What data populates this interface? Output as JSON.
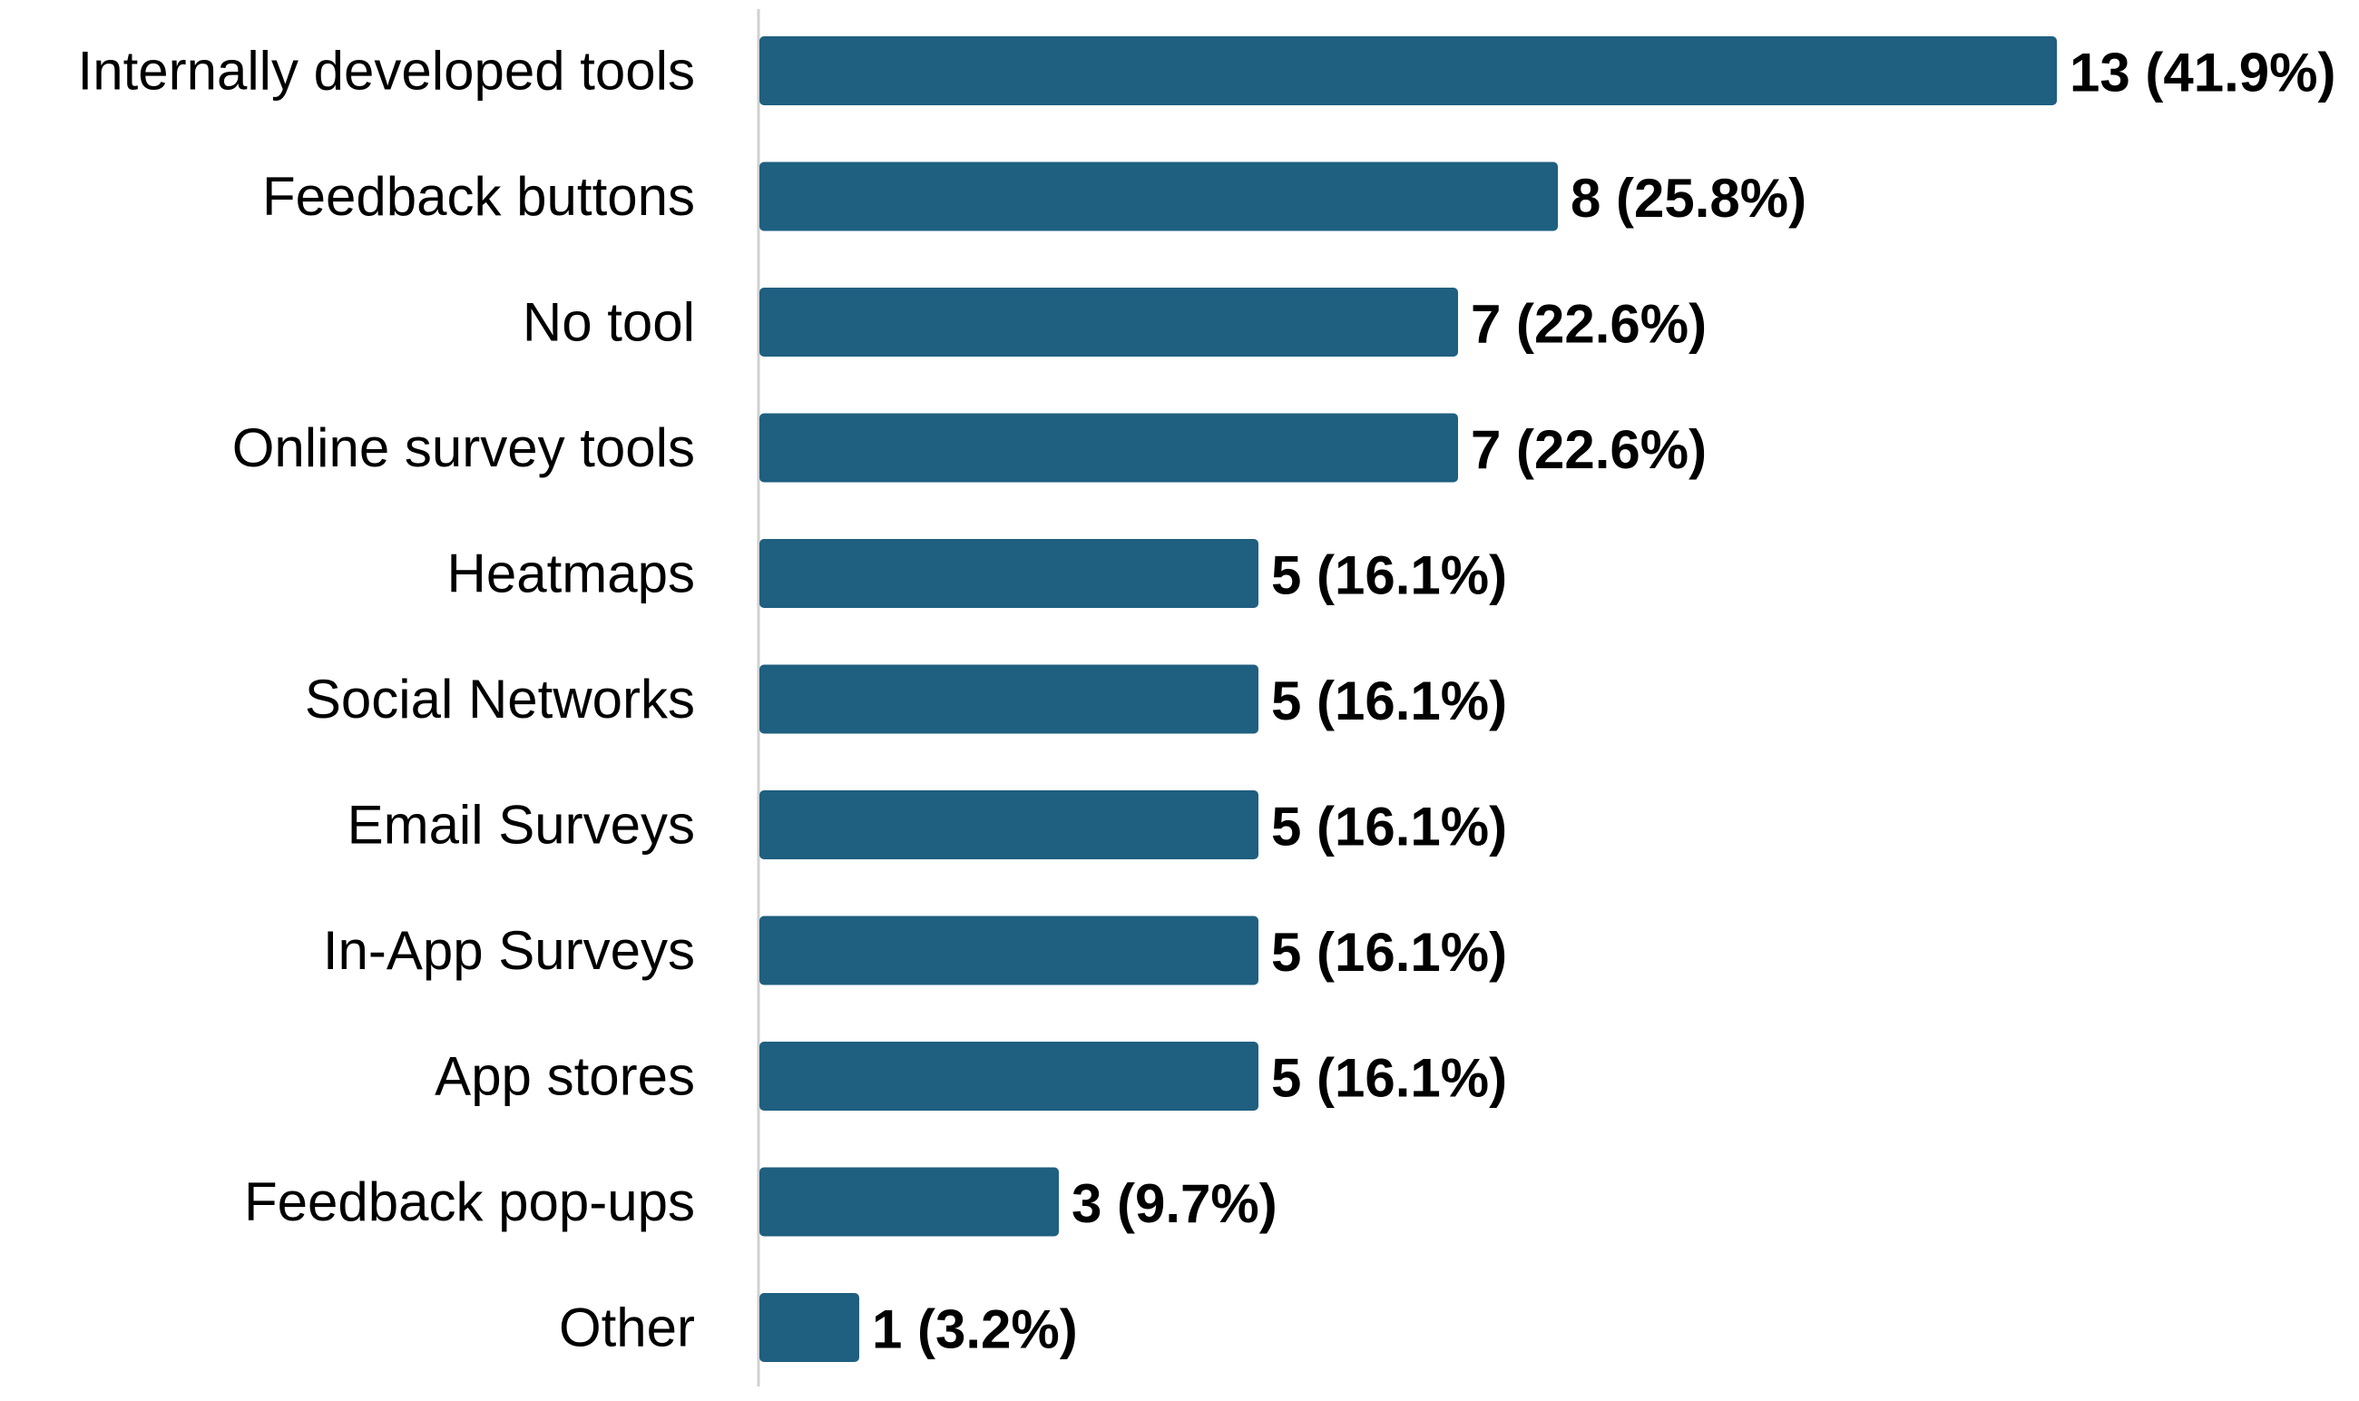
{
  "chart_data": {
    "type": "bar",
    "orientation": "horizontal",
    "title": "",
    "xlabel": "",
    "ylabel": "",
    "categories": [
      "Internally developed tools",
      "Feedback buttons",
      "No tool",
      "Online survey tools",
      "Heatmaps",
      "Social Networks",
      "Email Surveys",
      "In-App Surveys",
      "App stores",
      "Feedback pop-ups",
      "Other"
    ],
    "values": [
      13,
      8,
      7,
      7,
      5,
      5,
      5,
      5,
      5,
      3,
      1
    ],
    "data_labels": [
      "13 (41.9%)",
      "8 (25.8%)",
      "7 (22.6%)",
      "7 (22.6%)",
      "5 (16.1%)",
      "5 (16.1%)",
      "5 (16.1%)",
      "5 (16.1%)",
      "5 (16.1%)",
      "3 (9.7%)",
      "1 (3.2%)"
    ],
    "xlim": [
      0,
      13
    ],
    "grid": false,
    "legend": "none",
    "bar_color": "#1f5f80",
    "axis_color": "#d0d0d0",
    "text_color": "#000000"
  }
}
